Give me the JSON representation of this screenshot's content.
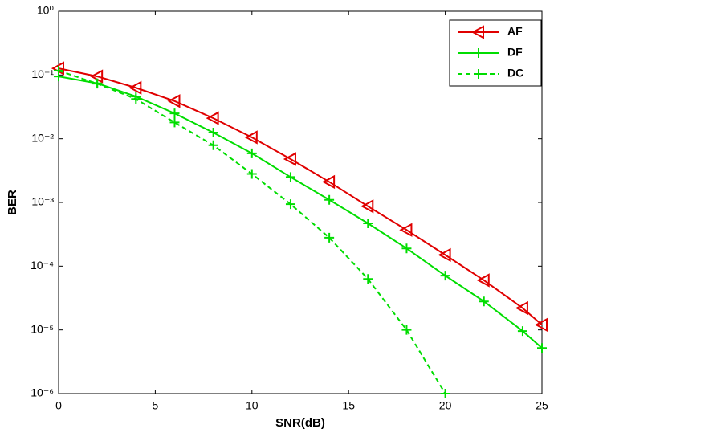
{
  "chart_data": {
    "type": "line",
    "xlabel": "SNR(dB)",
    "ylabel": "BER",
    "log_y": true,
    "grid": false,
    "legend": "upper right",
    "xlim": [
      0,
      25
    ],
    "xticks": [
      0,
      5,
      10,
      15,
      20,
      25
    ],
    "ylim": [
      1e-06,
      1
    ],
    "yticks": [
      {
        "value": 1e-06,
        "label": "10⁻⁶"
      },
      {
        "value": 1e-05,
        "label": "10⁻⁵"
      },
      {
        "value": 0.0001,
        "label": "10⁻⁴"
      },
      {
        "value": 0.001,
        "label": "10⁻³"
      },
      {
        "value": 0.01,
        "label": "10⁻²"
      },
      {
        "value": 0.1,
        "label": "10⁻¹"
      },
      {
        "value": 1,
        "label": "10⁰"
      }
    ],
    "series": [
      {
        "name": "AF",
        "color": "#e00000",
        "marker": "triangle-left",
        "dashed": false,
        "x": [
          0,
          2,
          4,
          6,
          8,
          10,
          12,
          14,
          16,
          18,
          20,
          22,
          24,
          25
        ],
        "values": [
          0.127,
          0.095,
          0.063,
          0.039,
          0.021,
          0.0105,
          0.0048,
          0.0021,
          0.00087,
          0.00037,
          0.00015,
          6e-05,
          2.2e-05,
          1.2e-05
        ]
      },
      {
        "name": "DF",
        "color": "#00dd00",
        "marker": "plus",
        "dashed": false,
        "x": [
          0,
          2,
          4,
          6,
          8,
          10,
          12,
          14,
          16,
          18,
          20,
          22,
          24,
          25
        ],
        "values": [
          0.095,
          0.074,
          0.046,
          0.025,
          0.0125,
          0.0059,
          0.0025,
          0.0011,
          0.00047,
          0.00019,
          7.1e-05,
          2.8e-05,
          9.6e-06,
          5.2e-06
        ]
      },
      {
        "name": "DC",
        "color": "#00dd00",
        "marker": "plus",
        "dashed": true,
        "x": [
          0,
          2,
          4,
          6,
          8,
          10,
          12,
          14,
          16,
          18,
          20
        ],
        "values": [
          0.117,
          0.073,
          0.042,
          0.018,
          0.0079,
          0.0028,
          0.00094,
          0.00028,
          6.3e-05,
          1e-05,
          1e-06
        ]
      }
    ]
  }
}
